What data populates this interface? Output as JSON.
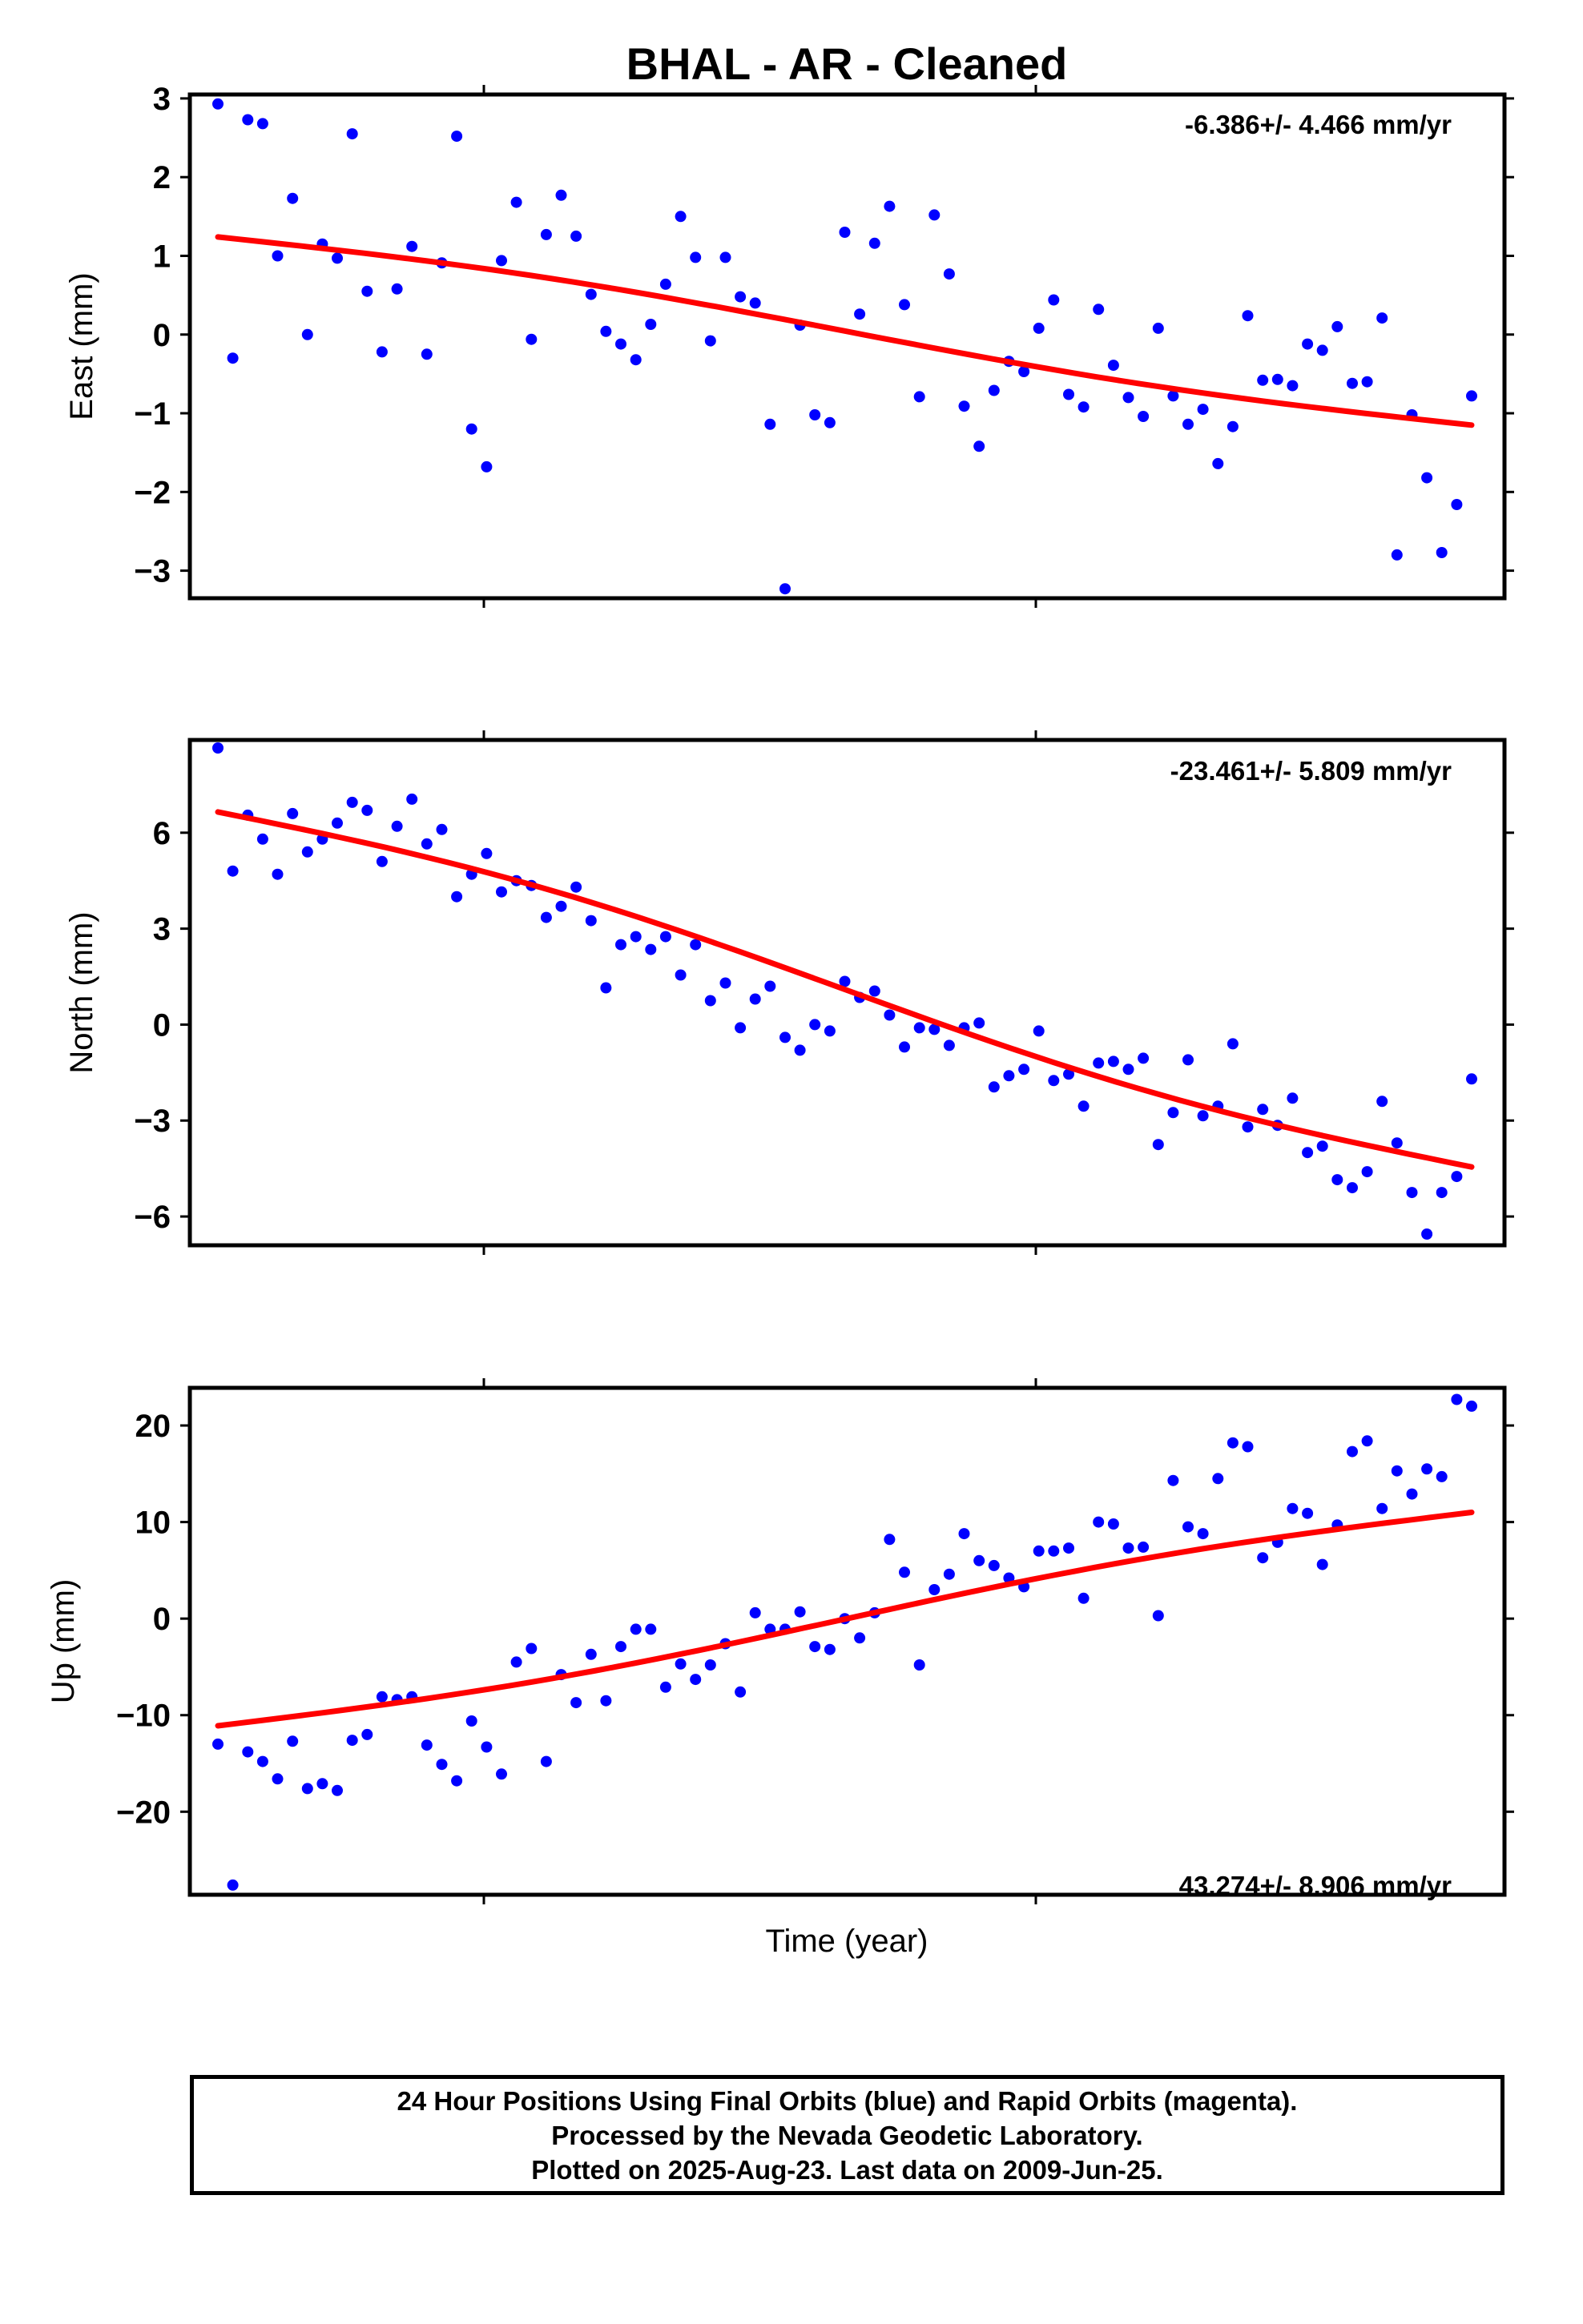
{
  "chart_data": [
    {
      "type": "scatter",
      "title": "BHAL  - AR - Cleaned",
      "ylabel": "East (mm)",
      "rate_label": "-6.386+/- 4.466 mm/yr",
      "ylim": [
        -3.35,
        3.05
      ],
      "yticks": [
        3,
        2,
        1,
        0,
        -1,
        -2,
        -3
      ],
      "ytick_labels": [
        "3",
        "2",
        "1",
        "0",
        "−1",
        "−2",
        "−3"
      ],
      "x": [
        0,
        1,
        2,
        3,
        4,
        5,
        6,
        7,
        8,
        9,
        10,
        11,
        12,
        13,
        14,
        15,
        16,
        17,
        18,
        19,
        20,
        21,
        22,
        23,
        24,
        25,
        26,
        27,
        28,
        29,
        30,
        31,
        32,
        33,
        34,
        35,
        36,
        37,
        38,
        39,
        40,
        41,
        42,
        43,
        44,
        45,
        46,
        47,
        48,
        49,
        50,
        51,
        52,
        53,
        54,
        55,
        56,
        57,
        58,
        59,
        60,
        61,
        62,
        63,
        64,
        65,
        66,
        67,
        68,
        69,
        70,
        71,
        72,
        73,
        74,
        75,
        76,
        77,
        78,
        79,
        80,
        81,
        82,
        83,
        84
      ],
      "y": [
        2.93,
        -0.3,
        2.73,
        2.68,
        1.0,
        1.73,
        0.0,
        1.15,
        0.97,
        2.55,
        0.55,
        -0.22,
        0.58,
        1.12,
        -0.25,
        0.91,
        2.52,
        -1.2,
        -1.68,
        0.94,
        1.68,
        -0.06,
        1.27,
        1.77,
        1.25,
        0.51,
        0.04,
        -0.12,
        -0.32,
        0.13,
        0.64,
        1.5,
        0.98,
        -0.08,
        0.98,
        0.48,
        0.4,
        -1.14,
        -3.23,
        0.12,
        -1.02,
        -1.12,
        1.3,
        0.26,
        1.16,
        1.63,
        0.38,
        -0.79,
        1.52,
        0.77,
        -0.91,
        -1.42,
        -0.71,
        -0.34,
        -0.47,
        0.08,
        0.44,
        -0.76,
        -0.92,
        0.32,
        -0.39,
        -0.8,
        -1.04,
        0.08,
        -0.78,
        -1.14,
        -0.95,
        -1.64,
        -1.17,
        0.24,
        -0.58,
        -0.57,
        -0.65,
        -0.12,
        -0.2,
        0.1,
        -0.62,
        -0.6,
        0.21,
        -2.8,
        -1.02,
        -1.82,
        -2.77,
        -2.16,
        -0.78
      ],
      "fit": [
        1.24,
        -1.15
      ],
      "point_color": "#0000ff",
      "fit_color": "#ff0000"
    },
    {
      "type": "scatter",
      "ylabel": "North (mm)",
      "rate_label": "-23.461+/- 5.809 mm/yr",
      "ylim": [
        -6.9,
        8.9
      ],
      "yticks": [
        6,
        3,
        0,
        -3,
        -6
      ],
      "ytick_labels": [
        "6",
        "3",
        "0",
        "−3",
        "−6"
      ],
      "x": [
        0,
        1,
        2,
        3,
        4,
        5,
        6,
        7,
        8,
        9,
        10,
        11,
        12,
        13,
        14,
        15,
        16,
        17,
        18,
        19,
        20,
        21,
        22,
        23,
        24,
        25,
        26,
        27,
        28,
        29,
        30,
        31,
        32,
        33,
        34,
        35,
        36,
        37,
        38,
        39,
        40,
        41,
        42,
        43,
        44,
        45,
        46,
        47,
        48,
        49,
        50,
        51,
        52,
        53,
        54,
        55,
        56,
        57,
        58,
        59,
        60,
        61,
        62,
        63,
        64,
        65,
        66,
        67,
        68,
        69,
        70,
        71,
        72,
        73,
        74,
        75,
        76,
        77,
        78,
        79,
        80,
        81,
        82,
        83,
        84
      ],
      "y": [
        8.65,
        4.8,
        6.55,
        5.8,
        4.7,
        6.6,
        5.4,
        5.8,
        6.3,
        6.95,
        6.7,
        5.1,
        6.2,
        7.05,
        5.65,
        6.1,
        4.0,
        4.7,
        5.35,
        4.15,
        4.5,
        4.35,
        3.35,
        3.7,
        4.3,
        3.25,
        1.15,
        2.5,
        2.75,
        2.35,
        2.75,
        1.55,
        2.5,
        0.75,
        1.3,
        -0.1,
        0.8,
        1.2,
        -0.4,
        -0.8,
        0.0,
        -0.2,
        1.35,
        0.85,
        1.05,
        0.3,
        -0.7,
        -0.1,
        -0.15,
        -0.65,
        -0.1,
        0.05,
        -1.95,
        -1.6,
        -1.4,
        -0.2,
        -1.75,
        -1.55,
        -2.55,
        -1.2,
        -1.15,
        -1.4,
        -1.05,
        -3.75,
        -2.75,
        -1.1,
        -2.85,
        -2.55,
        -0.6,
        -3.2,
        -2.65,
        -3.15,
        -2.3,
        -4.0,
        -3.8,
        -4.85,
        -5.1,
        -4.6,
        -2.4,
        -3.7,
        -5.25,
        -6.55,
        -5.25,
        -4.75,
        -1.7
      ],
      "fit": [
        6.65,
        -4.45
      ],
      "point_color": "#0000ff",
      "fit_color": "#ff0000"
    },
    {
      "type": "scatter",
      "ylabel": "Up (mm)",
      "xlabel": "Time (year)",
      "rate_label": "43.274+/- 8.906 mm/yr",
      "ylim": [
        -28.6,
        23.9
      ],
      "yticks": [
        20,
        10,
        0,
        -10,
        -20
      ],
      "ytick_labels": [
        "20",
        "10",
        "0",
        "−10",
        "−20"
      ],
      "x": [
        0,
        1,
        2,
        3,
        4,
        5,
        6,
        7,
        8,
        9,
        10,
        11,
        12,
        13,
        14,
        15,
        16,
        17,
        18,
        19,
        20,
        21,
        22,
        23,
        24,
        25,
        26,
        27,
        28,
        29,
        30,
        31,
        32,
        33,
        34,
        35,
        36,
        37,
        38,
        39,
        40,
        41,
        42,
        43,
        44,
        45,
        46,
        47,
        48,
        49,
        50,
        51,
        52,
        53,
        54,
        55,
        56,
        57,
        58,
        59,
        60,
        61,
        62,
        63,
        64,
        65,
        66,
        67,
        68,
        69,
        70,
        71,
        72,
        73,
        74,
        75,
        76,
        77,
        78,
        79,
        80,
        81,
        82,
        83,
        84
      ],
      "y": [
        -13.0,
        -27.6,
        -13.8,
        -14.8,
        -16.6,
        -12.7,
        -17.6,
        -17.1,
        -17.8,
        -12.6,
        -12.0,
        -8.1,
        -8.4,
        -8.1,
        -13.1,
        -15.1,
        -16.8,
        -10.6,
        -13.3,
        -16.1,
        -4.5,
        -3.1,
        -14.8,
        -5.8,
        -8.7,
        -3.7,
        -8.5,
        -2.9,
        -1.1,
        -1.1,
        -7.1,
        -4.7,
        -6.3,
        -4.8,
        -2.6,
        -7.6,
        0.6,
        -1.1,
        -1.1,
        0.7,
        -2.9,
        -3.2,
        0.0,
        -2.0,
        0.6,
        8.2,
        4.8,
        -4.8,
        3.0,
        4.6,
        8.8,
        6.0,
        5.5,
        4.2,
        3.3,
        7.0,
        7.0,
        7.3,
        2.1,
        10.0,
        9.8,
        7.3,
        7.4,
        0.3,
        14.3,
        9.5,
        8.8,
        14.5,
        18.2,
        17.8,
        6.3,
        7.9,
        11.4,
        10.9,
        5.6,
        9.7,
        17.3,
        18.4,
        11.4,
        15.3,
        12.9,
        15.5,
        14.7,
        22.7,
        22.0
      ],
      "fit": [
        -11.1,
        11.0
      ],
      "point_color": "#0000ff",
      "fit_color": "#ff0000"
    }
  ],
  "footer": {
    "line1": "24 Hour Positions Using Final Orbits (blue) and Rapid Orbits (magenta).",
    "line2": "Processed by the Nevada Geodetic Laboratory.",
    "line3": "Plotted on 2025-Aug-23. Last data on 2009-Jun-25."
  }
}
